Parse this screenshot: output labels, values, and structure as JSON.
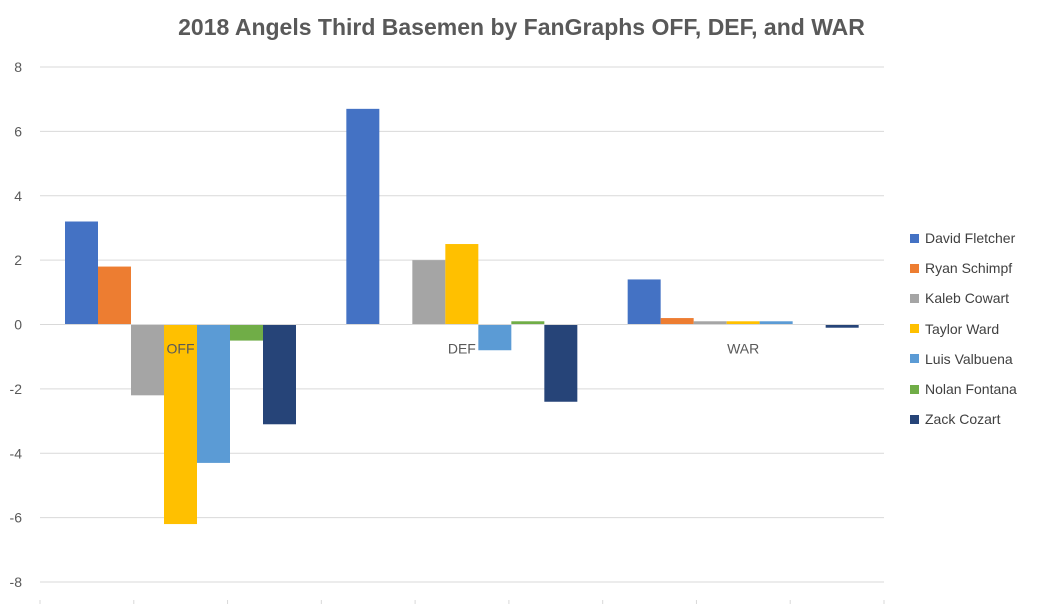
{
  "chart_data": {
    "type": "bar",
    "title": "2018 Angels Third Basemen by FanGraphs OFF, DEF, and WAR",
    "categories": [
      "OFF",
      "DEF",
      "WAR"
    ],
    "ylim": [
      -8,
      8
    ],
    "yticks": [
      8,
      6,
      4,
      2,
      0,
      -2,
      -4,
      -6,
      -8
    ],
    "grid": true,
    "legend_position": "right",
    "series": [
      {
        "name": "David Fletcher",
        "color": "#4472C4",
        "values": [
          3.2,
          6.7,
          1.4
        ]
      },
      {
        "name": "Ryan Schimpf",
        "color": "#ED7D31",
        "values": [
          1.8,
          0.0,
          0.2
        ]
      },
      {
        "name": "Kaleb Cowart",
        "color": "#A5A5A5",
        "values": [
          -2.2,
          2.0,
          0.1
        ]
      },
      {
        "name": "Taylor Ward",
        "color": "#FFC000",
        "values": [
          -6.2,
          2.5,
          0.1
        ]
      },
      {
        "name": "Luis Valbuena",
        "color": "#5B9BD5",
        "values": [
          -4.3,
          -0.8,
          0.1
        ]
      },
      {
        "name": "Nolan Fontana",
        "color": "#70AD47",
        "values": [
          -0.5,
          0.1,
          0.0
        ]
      },
      {
        "name": "Zack Cozart",
        "color": "#264478",
        "values": [
          -3.1,
          -2.4,
          -0.1
        ]
      }
    ]
  }
}
